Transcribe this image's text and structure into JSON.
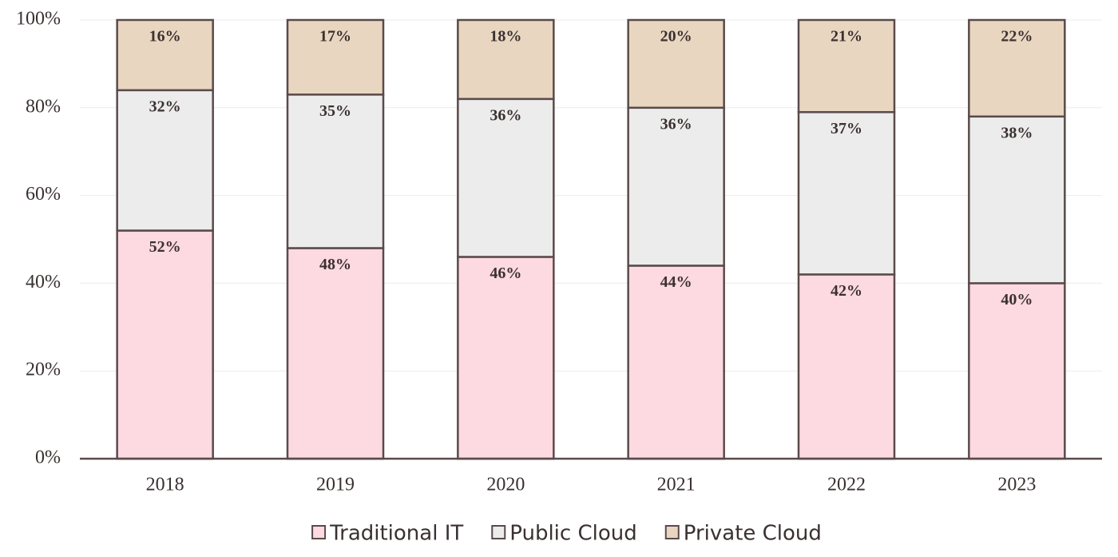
{
  "chart_data": {
    "type": "stacked_bar",
    "categories": [
      "2018",
      "2019",
      "2020",
      "2021",
      "2022",
      "2023"
    ],
    "series": [
      {
        "name": "Traditional IT",
        "color": "#fdd9e1",
        "values": [
          52,
          48,
          46,
          44,
          42,
          40
        ],
        "value_labels": [
          "52%",
          "48%",
          "46%",
          "44%",
          "42%",
          "40%"
        ]
      },
      {
        "name": "Public Cloud",
        "color": "#ececec",
        "values": [
          32,
          35,
          36,
          36,
          37,
          38
        ],
        "value_labels": [
          "32%",
          "35%",
          "36%",
          "36%",
          "37%",
          "38%"
        ]
      },
      {
        "name": "Private Cloud",
        "color": "#e8d6c0",
        "values": [
          16,
          17,
          18,
          20,
          21,
          22
        ],
        "value_labels": [
          "16%",
          "17%",
          "18%",
          "20%",
          "21%",
          "22%"
        ]
      }
    ],
    "ylim": [
      0,
      100
    ],
    "yticks": [
      {
        "value": 0,
        "label": "0%"
      },
      {
        "value": 20,
        "label": "20%"
      },
      {
        "value": 40,
        "label": "40%"
      },
      {
        "value": 60,
        "label": "60%"
      },
      {
        "value": 80,
        "label": "80%"
      },
      {
        "value": 100,
        "label": "100%"
      }
    ],
    "grid": true,
    "legend": "bottom"
  }
}
